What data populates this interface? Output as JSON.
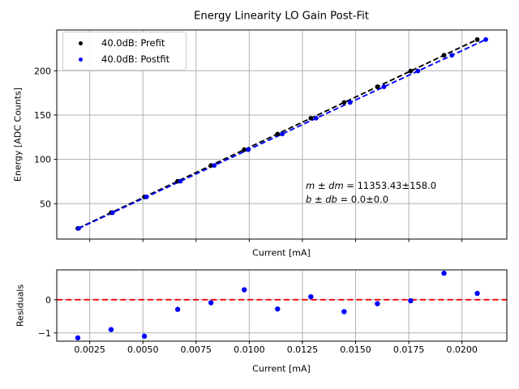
{
  "chart_data": [
    {
      "type": "scatter",
      "title": "Energy Linearity LO Gain Post-Fit",
      "xlabel": "Current [mA]",
      "ylabel": "Energy [ADC Counts]",
      "xlim": [
        0.00095,
        0.02211
      ],
      "ylim": [
        10,
        246
      ],
      "grid": true,
      "legend_position": "upper left",
      "xticks": [
        0.0025,
        0.005,
        0.0075,
        0.01,
        0.0125,
        0.015,
        0.0175,
        0.02
      ],
      "xtick_labels": null,
      "yticks": [
        50,
        100,
        150,
        200
      ],
      "ytick_labels": [
        "50",
        "100",
        "150",
        "200"
      ],
      "annotation": {
        "m_label": "m ± dm",
        "m_value": " = 11353.43±158.0",
        "b_label": "b ± db",
        "b_value": " = 0.0±0.0"
      },
      "series": [
        {
          "name": "40.0dB: Prefit",
          "slug": "prefit",
          "color": "#000000",
          "marker": "circle",
          "line_style": "dashed",
          "fit": {
            "slope": 11353.43,
            "intercept": 0.0,
            "x_start": 0.00194,
            "x_end": 0.02072
          },
          "x": [
            0.00194,
            0.003505,
            0.00507,
            0.006635,
            0.0082,
            0.009765,
            0.01133,
            0.012895,
            0.01446,
            0.016025,
            0.01759,
            0.019155,
            0.02072
          ],
          "y": [
            22.0,
            39.8,
            57.6,
            75.3,
            93.1,
            110.9,
            128.6,
            146.4,
            164.2,
            181.9,
            199.7,
            217.5,
            235.2
          ]
        },
        {
          "name": "40.0dB: Postfit",
          "slug": "postfit",
          "color": "#0000ff",
          "marker": "circle",
          "line_style": "dashed",
          "fit": {
            "slope": 11136.3,
            "intercept": 0.0,
            "x_start": 0.001977,
            "x_end": 0.02112
          },
          "x": [
            0.001977,
            0.003573,
            0.005168,
            0.006763,
            0.008358,
            0.009953,
            0.011549,
            0.013144,
            0.014739,
            0.016335,
            0.01793,
            0.019525,
            0.02112
          ],
          "y": [
            22.0,
            39.8,
            57.6,
            75.3,
            93.1,
            110.9,
            128.6,
            146.4,
            164.2,
            181.9,
            199.7,
            217.5,
            235.2
          ]
        }
      ]
    },
    {
      "type": "scatter",
      "title": "",
      "xlabel": "Current [mA]",
      "ylabel": "Residuals",
      "xlim": [
        0.00095,
        0.02211
      ],
      "ylim": [
        -1.25,
        0.9
      ],
      "grid": true,
      "xticks": [
        0.0025,
        0.005,
        0.0075,
        0.01,
        0.0125,
        0.015,
        0.0175,
        0.02
      ],
      "xtick_labels": [
        "0.0025",
        "0.0050",
        "0.0075",
        "0.0100",
        "0.0125",
        "0.0150",
        "0.0175",
        "0.0200"
      ],
      "yticks": [
        0,
        -1
      ],
      "ytick_labels": [
        "0",
        "−1"
      ],
      "refline": {
        "y": 0.0,
        "color": "#ff0000",
        "style": "dashed"
      },
      "series": [
        {
          "name": "Residuals",
          "slug": "residual",
          "color": "#0000ff",
          "marker": "circle",
          "x": [
            0.00194,
            0.003505,
            0.00507,
            0.006635,
            0.0082,
            0.009765,
            0.01133,
            0.012895,
            0.01446,
            0.016025,
            0.01759,
            0.019155,
            0.02072
          ],
          "y": [
            -1.15,
            -0.9,
            -1.1,
            -0.29,
            -0.09,
            0.3,
            -0.28,
            0.09,
            -0.36,
            -0.12,
            -0.03,
            0.8,
            0.19
          ]
        }
      ]
    }
  ],
  "colors": {
    "grid": "#b0b0b0",
    "spine": "#000000",
    "prefit": "#000000",
    "postfit": "#0000ff",
    "refline": "#ff0000",
    "background": "#ffffff"
  }
}
